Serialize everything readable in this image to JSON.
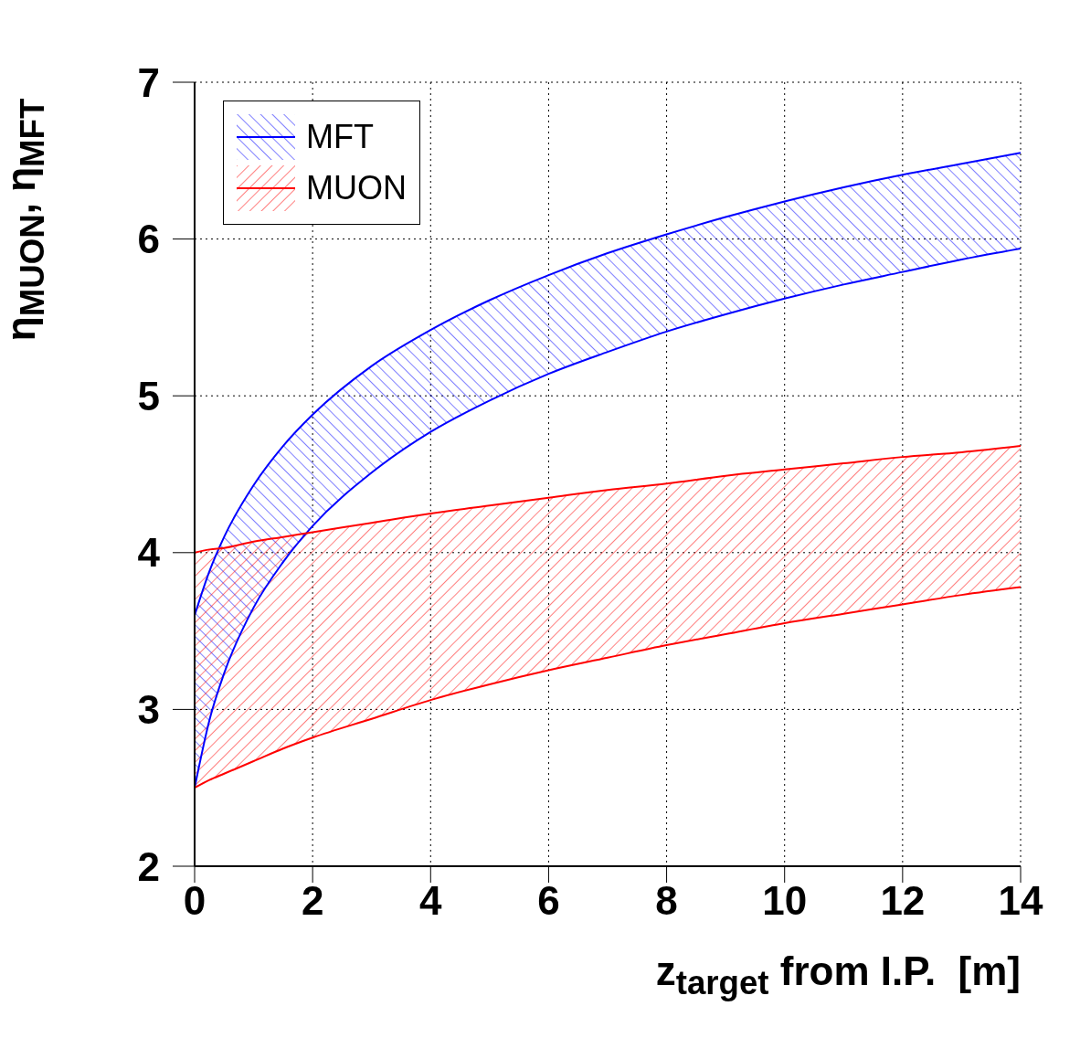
{
  "chart_data": {
    "type": "line",
    "xlabel": "z$_{target}$ from I.P.  [m]",
    "ylabel": "η$_{MUON}$, η$_{MFT}$",
    "x": [
      0,
      0.25,
      0.5,
      1,
      1.5,
      2,
      3,
      4,
      5,
      6,
      7,
      8,
      9,
      10,
      11,
      12,
      13,
      14
    ],
    "series": [
      {
        "name": "MFT",
        "color": "#0000ff",
        "values": [
          3.6,
          3.88,
          4.1,
          4.43,
          4.68,
          4.88,
          5.19,
          5.42,
          5.61,
          5.77,
          5.91,
          6.03,
          6.14,
          6.24,
          6.33,
          6.41,
          6.48,
          6.55
        ],
        "lower": [
          2.5,
          2.93,
          3.23,
          3.65,
          3.94,
          4.17,
          4.51,
          4.77,
          4.97,
          5.14,
          5.28,
          5.41,
          5.52,
          5.62,
          5.71,
          5.79,
          5.87,
          5.94
        ],
        "upper": [
          3.6,
          3.88,
          4.1,
          4.43,
          4.68,
          4.88,
          5.19,
          5.42,
          5.61,
          5.77,
          5.91,
          6.03,
          6.14,
          6.24,
          6.33,
          6.41,
          6.48,
          6.55
        ]
      },
      {
        "color": "#0000ff",
        "values": [
          2.5,
          2.93,
          3.23,
          3.65,
          3.94,
          4.17,
          4.51,
          4.77,
          4.97,
          5.14,
          5.28,
          5.41,
          5.52,
          5.62,
          5.71,
          5.79,
          5.87,
          5.94
        ]
      },
      {
        "name": "MUON",
        "color": "#ff0000",
        "values": [
          4.0,
          4.02,
          4.03,
          4.07,
          4.1,
          4.13,
          4.19,
          4.25,
          4.3,
          4.35,
          4.4,
          4.44,
          4.49,
          4.53,
          4.57,
          4.61,
          4.64,
          4.68
        ],
        "lower": [
          2.5,
          2.55,
          2.59,
          2.67,
          2.75,
          2.82,
          2.94,
          3.06,
          3.16,
          3.25,
          3.33,
          3.41,
          3.48,
          3.55,
          3.61,
          3.67,
          3.73,
          3.78
        ],
        "upper": [
          4.0,
          4.02,
          4.03,
          4.07,
          4.1,
          4.13,
          4.19,
          4.25,
          4.3,
          4.35,
          4.4,
          4.44,
          4.49,
          4.53,
          4.57,
          4.61,
          4.64,
          4.68
        ]
      },
      {
        "color": "#ff0000",
        "values": [
          2.5,
          2.55,
          2.59,
          2.67,
          2.75,
          2.82,
          2.94,
          3.06,
          3.16,
          3.25,
          3.33,
          3.41,
          3.48,
          3.55,
          3.61,
          3.67,
          3.73,
          3.78
        ]
      }
    ],
    "xlim": [
      0,
      14
    ],
    "xticks": [
      0,
      2,
      4,
      6,
      8,
      10,
      12,
      14
    ],
    "ylim": [
      2,
      7
    ],
    "yticks": [
      2,
      3,
      4,
      5,
      6,
      7
    ],
    "grid": true,
    "legend": "top left",
    "line_style": "solid",
    "marker": "none"
  }
}
